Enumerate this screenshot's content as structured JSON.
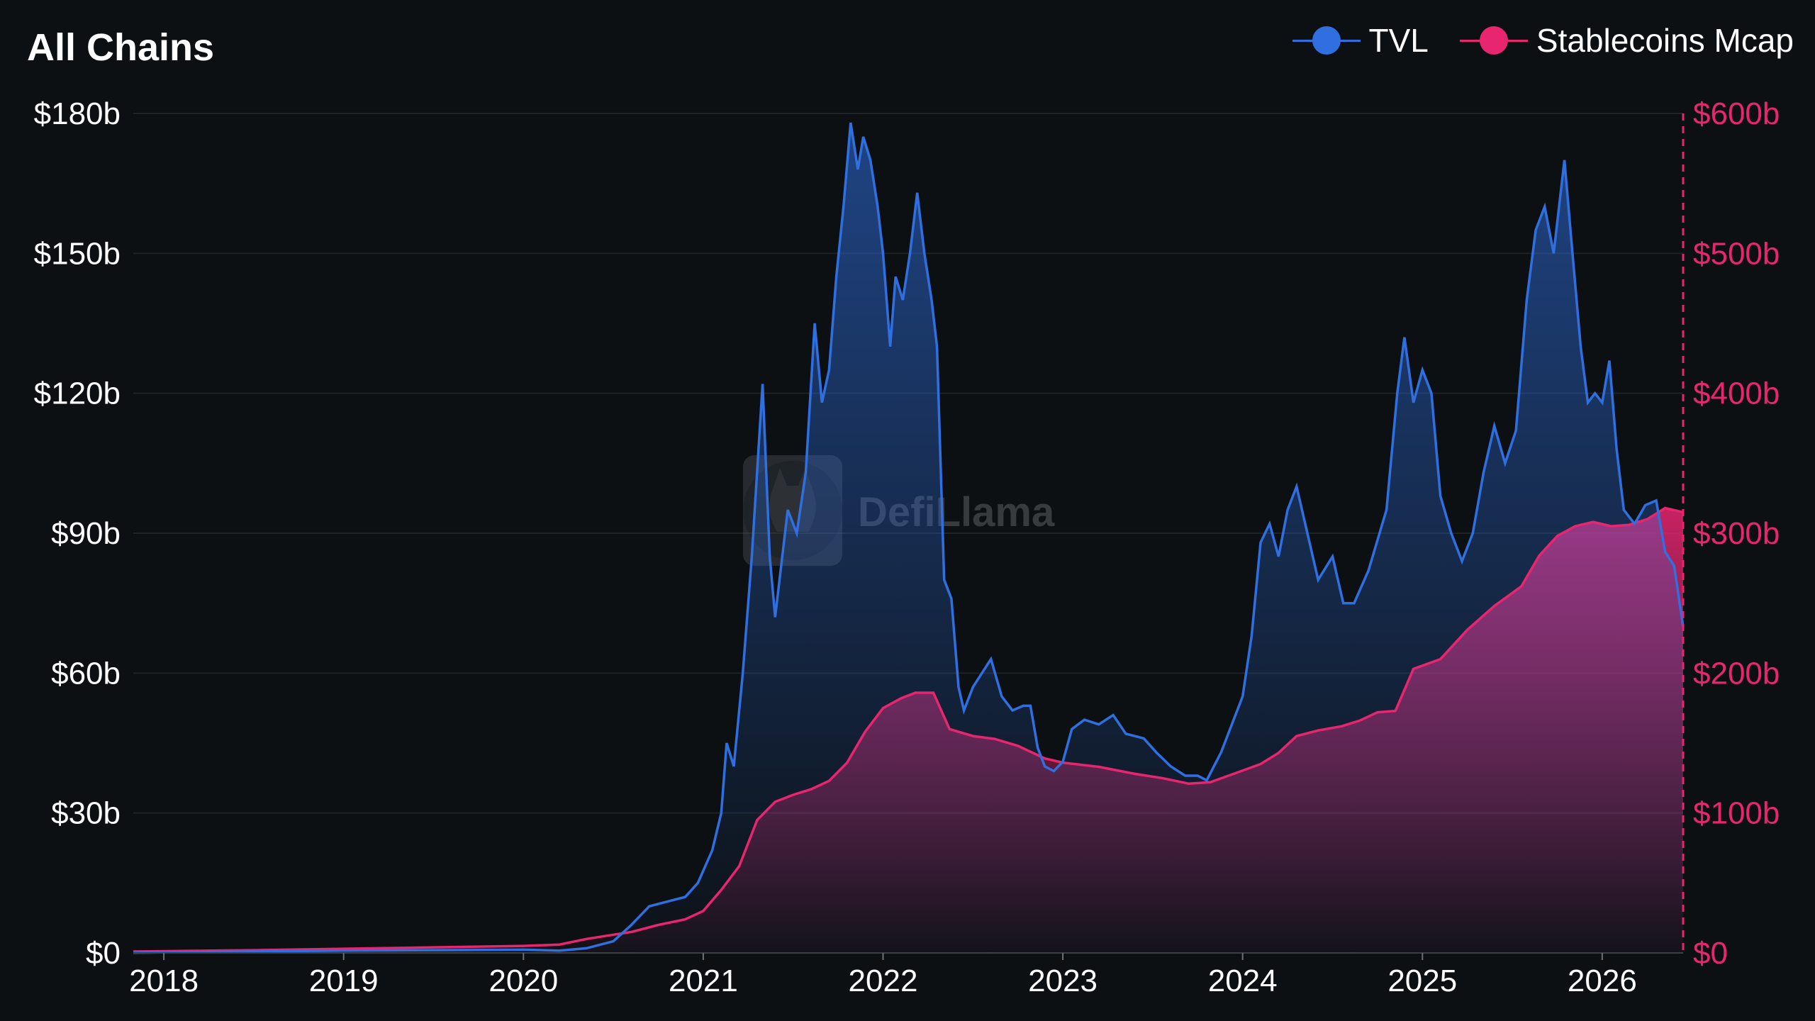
{
  "title": "All Chains",
  "colors": {
    "background": "#0c1013",
    "tvl": "#2f6fe0",
    "stablecoins": "#e8266f",
    "grid": "#1c2227",
    "axis_text": "#ffffff",
    "right_axis_text": "#e8266f"
  },
  "legend": {
    "tvl_label": "TVL",
    "stable_label": "Stablecoins Mcap"
  },
  "watermark": {
    "text": "DefiLlama",
    "icon": "llama-logo-icon"
  },
  "chart_data": {
    "type": "area",
    "x_ticks": [
      "2018",
      "2019",
      "2020",
      "2021",
      "2022",
      "2023",
      "2024",
      "2025",
      "2026"
    ],
    "y_left": {
      "ticks": [
        "$0",
        "$30b",
        "$60b",
        "$90b",
        "$120b",
        "$150b",
        "$180b"
      ],
      "range": [
        0,
        180
      ]
    },
    "y_right": {
      "ticks": [
        "$0",
        "$100b",
        "$200b",
        "$300b",
        "$400b",
        "$500b",
        "$600b"
      ],
      "range": [
        0,
        600
      ]
    },
    "x_range": [
      2017.83,
      2026.45
    ],
    "series": [
      {
        "name": "TVL",
        "axis": "left",
        "unit": "billion USD",
        "points": [
          [
            2017.83,
            0.05
          ],
          [
            2018.0,
            0.1
          ],
          [
            2018.5,
            0.3
          ],
          [
            2019.0,
            0.5
          ],
          [
            2019.5,
            0.6
          ],
          [
            2020.0,
            0.7
          ],
          [
            2020.2,
            0.5
          ],
          [
            2020.35,
            1.0
          ],
          [
            2020.5,
            2.5
          ],
          [
            2020.6,
            6
          ],
          [
            2020.7,
            10
          ],
          [
            2020.8,
            11
          ],
          [
            2020.9,
            12
          ],
          [
            2020.97,
            15
          ],
          [
            2021.05,
            22
          ],
          [
            2021.1,
            30
          ],
          [
            2021.13,
            45
          ],
          [
            2021.17,
            40
          ],
          [
            2021.22,
            60
          ],
          [
            2021.27,
            85
          ],
          [
            2021.33,
            122
          ],
          [
            2021.37,
            85
          ],
          [
            2021.4,
            72
          ],
          [
            2021.47,
            95
          ],
          [
            2021.52,
            90
          ],
          [
            2021.57,
            103
          ],
          [
            2021.62,
            135
          ],
          [
            2021.66,
            118
          ],
          [
            2021.7,
            125
          ],
          [
            2021.74,
            145
          ],
          [
            2021.78,
            160
          ],
          [
            2021.82,
            178
          ],
          [
            2021.86,
            168
          ],
          [
            2021.89,
            175
          ],
          [
            2021.93,
            170
          ],
          [
            2021.97,
            160
          ],
          [
            2022.0,
            150
          ],
          [
            2022.04,
            130
          ],
          [
            2022.07,
            145
          ],
          [
            2022.11,
            140
          ],
          [
            2022.15,
            150
          ],
          [
            2022.19,
            163
          ],
          [
            2022.23,
            150
          ],
          [
            2022.27,
            140
          ],
          [
            2022.3,
            130
          ],
          [
            2022.34,
            80
          ],
          [
            2022.38,
            76
          ],
          [
            2022.42,
            57
          ],
          [
            2022.45,
            52
          ],
          [
            2022.5,
            57
          ],
          [
            2022.55,
            60
          ],
          [
            2022.6,
            63
          ],
          [
            2022.66,
            55
          ],
          [
            2022.72,
            52
          ],
          [
            2022.78,
            53
          ],
          [
            2022.82,
            53
          ],
          [
            2022.86,
            44
          ],
          [
            2022.9,
            40
          ],
          [
            2022.95,
            39
          ],
          [
            2023.0,
            41
          ],
          [
            2023.05,
            48
          ],
          [
            2023.12,
            50
          ],
          [
            2023.2,
            49
          ],
          [
            2023.28,
            51
          ],
          [
            2023.35,
            47
          ],
          [
            2023.45,
            46
          ],
          [
            2023.52,
            43
          ],
          [
            2023.6,
            40
          ],
          [
            2023.68,
            38
          ],
          [
            2023.75,
            38
          ],
          [
            2023.8,
            37
          ],
          [
            2023.88,
            43
          ],
          [
            2023.95,
            50
          ],
          [
            2024.0,
            55
          ],
          [
            2024.05,
            68
          ],
          [
            2024.1,
            88
          ],
          [
            2024.15,
            92
          ],
          [
            2024.2,
            85
          ],
          [
            2024.25,
            95
          ],
          [
            2024.3,
            100
          ],
          [
            2024.36,
            90
          ],
          [
            2024.42,
            80
          ],
          [
            2024.5,
            85
          ],
          [
            2024.56,
            75
          ],
          [
            2024.62,
            75
          ],
          [
            2024.7,
            82
          ],
          [
            2024.8,
            95
          ],
          [
            2024.86,
            120
          ],
          [
            2024.9,
            132
          ],
          [
            2024.95,
            118
          ],
          [
            2025.0,
            125
          ],
          [
            2025.05,
            120
          ],
          [
            2025.1,
            98
          ],
          [
            2025.16,
            90
          ],
          [
            2025.22,
            84
          ],
          [
            2025.28,
            90
          ],
          [
            2025.34,
            103
          ],
          [
            2025.4,
            113
          ],
          [
            2025.46,
            105
          ],
          [
            2025.52,
            112
          ],
          [
            2025.58,
            140
          ],
          [
            2025.63,
            155
          ],
          [
            2025.68,
            160
          ],
          [
            2025.73,
            150
          ],
          [
            2025.79,
            170
          ],
          [
            2025.83,
            152
          ],
          [
            2025.88,
            130
          ],
          [
            2025.92,
            118
          ],
          [
            2025.96,
            120
          ],
          [
            2026.0,
            118
          ],
          [
            2026.04,
            127
          ],
          [
            2026.08,
            108
          ],
          [
            2026.12,
            95
          ],
          [
            2026.18,
            92
          ],
          [
            2026.24,
            96
          ],
          [
            2026.3,
            97
          ],
          [
            2026.35,
            86
          ],
          [
            2026.4,
            83
          ],
          [
            2026.45,
            70
          ]
        ]
      },
      {
        "name": "Stablecoins Mcap",
        "axis": "right",
        "unit": "billion USD",
        "points": [
          [
            2017.83,
            1
          ],
          [
            2018.5,
            2
          ],
          [
            2019.0,
            3
          ],
          [
            2019.5,
            4
          ],
          [
            2020.0,
            5
          ],
          [
            2020.2,
            6
          ],
          [
            2020.35,
            10
          ],
          [
            2020.5,
            13
          ],
          [
            2020.6,
            15
          ],
          [
            2020.75,
            20
          ],
          [
            2020.9,
            24
          ],
          [
            2021.0,
            30
          ],
          [
            2021.1,
            45
          ],
          [
            2021.2,
            62
          ],
          [
            2021.3,
            95
          ],
          [
            2021.4,
            108
          ],
          [
            2021.5,
            113
          ],
          [
            2021.6,
            117
          ],
          [
            2021.7,
            123
          ],
          [
            2021.8,
            136
          ],
          [
            2021.9,
            158
          ],
          [
            2022.0,
            175
          ],
          [
            2022.1,
            182
          ],
          [
            2022.18,
            186
          ],
          [
            2022.28,
            186
          ],
          [
            2022.37,
            160
          ],
          [
            2022.5,
            155
          ],
          [
            2022.62,
            153
          ],
          [
            2022.75,
            148
          ],
          [
            2022.9,
            139
          ],
          [
            2023.0,
            136
          ],
          [
            2023.2,
            133
          ],
          [
            2023.4,
            128
          ],
          [
            2023.55,
            125
          ],
          [
            2023.7,
            121
          ],
          [
            2023.82,
            122
          ],
          [
            2023.95,
            128
          ],
          [
            2024.1,
            135
          ],
          [
            2024.2,
            143
          ],
          [
            2024.3,
            155
          ],
          [
            2024.42,
            159
          ],
          [
            2024.55,
            162
          ],
          [
            2024.65,
            166
          ],
          [
            2024.75,
            172
          ],
          [
            2024.85,
            173
          ],
          [
            2024.95,
            203
          ],
          [
            2025.1,
            210
          ],
          [
            2025.25,
            231
          ],
          [
            2025.4,
            248
          ],
          [
            2025.55,
            262
          ],
          [
            2025.65,
            284
          ],
          [
            2025.75,
            298
          ],
          [
            2025.85,
            305
          ],
          [
            2025.95,
            308
          ],
          [
            2026.05,
            305
          ],
          [
            2026.15,
            306
          ],
          [
            2026.25,
            310
          ],
          [
            2026.35,
            318
          ],
          [
            2026.45,
            315
          ]
        ]
      }
    ],
    "grid": true,
    "legend_position": "top-right"
  }
}
